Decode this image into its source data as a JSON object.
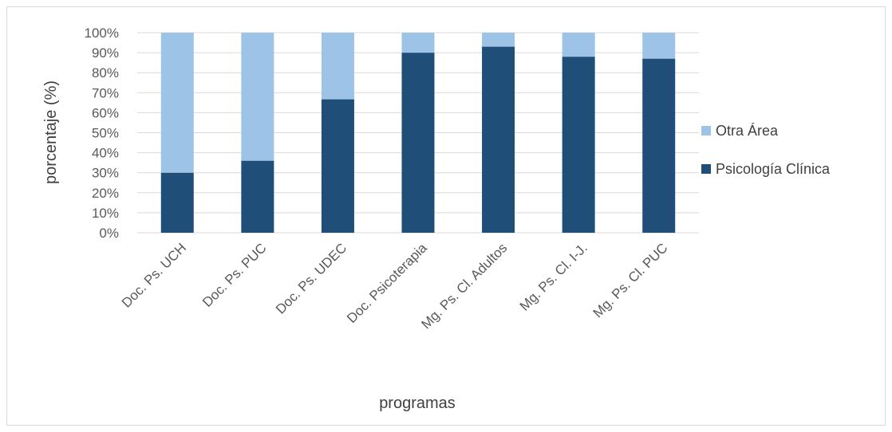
{
  "chart_data": {
    "type": "bar",
    "stacked": true,
    "percent_stacked": true,
    "categories": [
      "Doc. Ps. UCH",
      "Doc. Ps. PUC",
      "Doc. Ps. UDEC",
      "Doc. Psicoterapia",
      "Mg. Ps. Cl. Adultos",
      "Mg. Ps. Cl. I-J.",
      "Mg. Ps. Cl. PUC"
    ],
    "series": [
      {
        "name": "Psicología Clínica",
        "color": "#1f4e79",
        "values": [
          30,
          36,
          66.7,
          90,
          93,
          88,
          87
        ]
      },
      {
        "name": "Otra Área",
        "color": "#9dc3e6",
        "values": [
          70,
          64,
          33.3,
          10,
          7,
          12,
          13
        ]
      }
    ],
    "legend_order": [
      "Otra Área",
      "Psicología Clínica"
    ],
    "legend_position": "right",
    "xlabel": "programas",
    "ylabel": "porcentaje (%)",
    "ylim": [
      0,
      100
    ],
    "yticks": [
      "0%",
      "10%",
      "20%",
      "30%",
      "40%",
      "50%",
      "60%",
      "70%",
      "80%",
      "90%",
      "100%"
    ],
    "grid": true
  }
}
